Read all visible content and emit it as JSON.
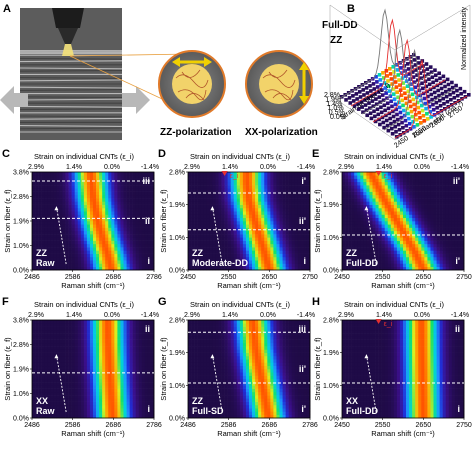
{
  "panel_a": {
    "letter": "A",
    "zz_label": "ZZ-polarization",
    "xx_label": "XX-polarization"
  },
  "panel_b": {
    "letter": "B",
    "sample_line1": "Full-DD",
    "sample_line2": "ZZ",
    "z_label": "Normalized intensity",
    "y_label": "Strain on fiber (ε_f)",
    "x_label": "Raman shift (cm⁻¹)",
    "y_ticks": [
      "2.8%",
      "1.9%",
      "1.4%",
      "1.0%",
      "0.5%",
      "0.0%"
    ],
    "x_ticks": [
      "2450",
      "2550",
      "2650",
      "2750"
    ]
  },
  "colors": {
    "colormap": [
      "#1a0a3a",
      "#3b0f8a",
      "#1f2fd8",
      "#1e90ff",
      "#00d0e0",
      "#10e070",
      "#d8f020",
      "#ffa000",
      "#ff3c00"
    ],
    "peak_overlay": "#e53030",
    "dash_white": "#ffffff"
  },
  "chart_data": [
    {
      "panel": "C",
      "type": "heatmap",
      "title": "Strain on individual CNTs (ε_i)",
      "top_ticks": [
        "2.9%",
        "1.4%",
        "0.0%",
        "-1.4%"
      ],
      "x_ticks": [
        "2486",
        "2586",
        "2686",
        "2786"
      ],
      "xlim": [
        2486,
        2786
      ],
      "y_ticks": [
        "3.8%",
        "2.8%",
        "1.9%",
        "1.0%",
        "0.0%"
      ],
      "ylim": [
        0,
        3.8
      ],
      "xlabel": "Raman shift (cm⁻¹)",
      "ylabel": "Strain on fiber (ε_f)",
      "sample": [
        "ZZ",
        "Raw"
      ],
      "regions": [
        "iii",
        "ii",
        "i"
      ],
      "region_dividers": [
        3.45,
        2.0
      ],
      "peak_center": [
        [
          0,
          2681
        ],
        [
          0.6,
          2672
        ],
        [
          1.2,
          2660
        ],
        [
          1.9,
          2648
        ],
        [
          2.8,
          2636
        ],
        [
          3.8,
          2630
        ]
      ]
    },
    {
      "panel": "D",
      "type": "heatmap",
      "title": "Strain on individual CNTs (ε_i)",
      "top_ticks": [
        "2.9%",
        "1.4%",
        "0.0%",
        "-1.4%"
      ],
      "x_ticks": [
        "2450",
        "2550",
        "2650",
        "2750"
      ],
      "xlim": [
        2450,
        2750
      ],
      "y_ticks": [
        "2.8%",
        "1.9%",
        "1.0%",
        "0.0%"
      ],
      "ylim": [
        0,
        2.8
      ],
      "xlabel": "Raman shift (cm⁻¹)",
      "ylabel": "Strain on fiber (ε_f)",
      "sample": [
        "ZZ",
        "Moderate-DD"
      ],
      "regions": [
        "i'",
        "ii'",
        "i"
      ],
      "region_dividers": [
        2.2,
        1.15
      ],
      "epsilon_marker": "ε_i",
      "peak_center": [
        [
          0,
          2650
        ],
        [
          0.5,
          2638
        ],
        [
          1.0,
          2625
        ],
        [
          1.5,
          2612
        ],
        [
          2.0,
          2600
        ],
        [
          2.5,
          2595
        ]
      ]
    },
    {
      "panel": "E",
      "type": "heatmap",
      "title": "Strain on individual CNTs (ε_i)",
      "top_ticks": [
        "2.9%",
        "1.4%",
        "0.0%",
        "-1.4%"
      ],
      "x_ticks": [
        "2450",
        "2550",
        "2650",
        "2750"
      ],
      "xlim": [
        2450,
        2750
      ],
      "y_ticks": [
        "2.8%",
        "1.9%",
        "1.0%",
        "0.0%"
      ],
      "ylim": [
        0,
        2.8
      ],
      "xlabel": "Raman shift (cm⁻¹)",
      "ylabel": "Strain on fiber (ε_f)",
      "sample": [
        "ZZ",
        "Full-DD"
      ],
      "regions": [
        "ii'",
        "i'"
      ],
      "region_dividers": [
        1.0
      ],
      "epsilon_marker": "ε_i",
      "peak_center": [
        [
          0,
          2650
        ],
        [
          0.5,
          2630
        ],
        [
          1.0,
          2605
        ],
        [
          1.5,
          2580
        ],
        [
          2.0,
          2555
        ],
        [
          2.8,
          2520
        ]
      ]
    },
    {
      "panel": "F",
      "type": "heatmap",
      "title": "Strain on individual CNTs (ε_i)",
      "top_ticks": [
        "2.9%",
        "1.4%",
        "0.0%",
        "-1.4%"
      ],
      "x_ticks": [
        "2486",
        "2586",
        "2686",
        "2786"
      ],
      "xlim": [
        2486,
        2786
      ],
      "y_ticks": [
        "3.8%",
        "2.8%",
        "1.9%",
        "1.0%",
        "0.0%"
      ],
      "ylim": [
        0,
        3.8
      ],
      "xlabel": "Raman shift (cm⁻¹)",
      "ylabel": "Strain on fiber (ε_f)",
      "sample": [
        "XX",
        "Raw"
      ],
      "regions": [
        "ii",
        "i"
      ],
      "region_dividers": [
        1.75
      ],
      "peak_center": [
        [
          0,
          2684
        ],
        [
          1.0,
          2680
        ],
        [
          2.0,
          2676
        ],
        [
          3.0,
          2673
        ],
        [
          3.8,
          2672
        ]
      ]
    },
    {
      "panel": "G",
      "type": "heatmap",
      "title": "Strain on individual CNTs (ε_i)",
      "top_ticks": [
        "2.9%",
        "1.4%",
        "0.0%",
        "-1.4%"
      ],
      "x_ticks": [
        "2486",
        "2586",
        "2686",
        "2786"
      ],
      "xlim": [
        2486,
        2786
      ],
      "y_ticks": [
        "2.8%",
        "1.9%",
        "1.0%",
        "0.0%"
      ],
      "ylim": [
        0,
        2.8
      ],
      "xlabel": "Raman shift (cm⁻¹)",
      "ylabel": "Strain on fiber (ε_f)",
      "sample": [
        "ZZ",
        "Full-SD"
      ],
      "regions": [
        "iii",
        "ii'",
        "i'"
      ],
      "region_dividers": [
        2.45,
        1.0
      ],
      "peak_center": [
        [
          0,
          2684
        ],
        [
          1.0,
          2668
        ],
        [
          2.0,
          2652
        ],
        [
          2.8,
          2645
        ]
      ]
    },
    {
      "panel": "H",
      "type": "heatmap",
      "title": "Strain on individual CNTs (ε_i)",
      "top_ticks": [
        "2.9%",
        "1.4%",
        "0.0%",
        "-1.4%"
      ],
      "x_ticks": [
        "2450",
        "2550",
        "2650",
        "2750"
      ],
      "xlim": [
        2450,
        2750
      ],
      "y_ticks": [
        "2.8%",
        "1.9%",
        "1.0%",
        "0.0%"
      ],
      "ylim": [
        0,
        2.8
      ],
      "xlabel": "Raman shift (cm⁻¹)",
      "ylabel": "Strain on fiber (ε_f)",
      "sample": [
        "XX",
        "Full-DD"
      ],
      "regions": [
        "ii",
        "i"
      ],
      "region_dividers": [
        1.0
      ],
      "epsilon_marker": "ε_i",
      "peak_center": [
        [
          0,
          2650
        ],
        [
          1.0,
          2648
        ],
        [
          2.0,
          2646
        ],
        [
          2.8,
          2645
        ]
      ]
    }
  ]
}
